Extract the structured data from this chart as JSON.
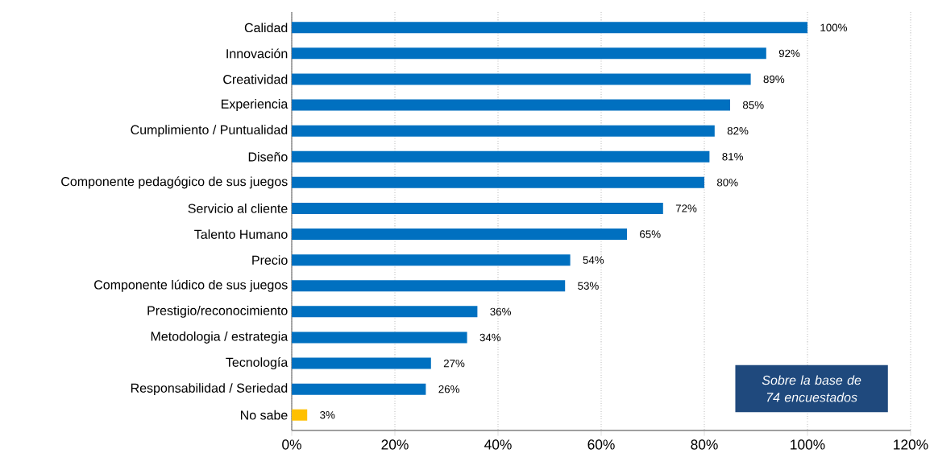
{
  "chart_data": {
    "type": "bar",
    "orientation": "horizontal",
    "categories": [
      "Calidad",
      "Innovación",
      "Creatividad",
      "Experiencia",
      "Cumplimiento / Puntualidad",
      "Diseño",
      "Componente pedagógico de sus juegos",
      "Servicio al cliente",
      "Talento Humano",
      "Precio",
      "Componente lúdico de sus juegos",
      "Prestigio/reconocimiento",
      "Metodologia / estrategia",
      "Tecnología",
      "Responsabilidad / Seriedad",
      "No sabe"
    ],
    "values": [
      100,
      92,
      89,
      85,
      82,
      81,
      80,
      72,
      65,
      54,
      53,
      36,
      34,
      27,
      26,
      3
    ],
    "value_labels": [
      "100%",
      "92%",
      "89%",
      "85%",
      "82%",
      "81%",
      "80%",
      "72%",
      "65%",
      "54%",
      "53%",
      "36%",
      "34%",
      "27%",
      "26%",
      "3%"
    ],
    "colors": [
      "#0070c0",
      "#0070c0",
      "#0070c0",
      "#0070c0",
      "#0070c0",
      "#0070c0",
      "#0070c0",
      "#0070c0",
      "#0070c0",
      "#0070c0",
      "#0070c0",
      "#0070c0",
      "#0070c0",
      "#0070c0",
      "#0070c0",
      "#ffc000"
    ],
    "xlim": [
      0,
      120
    ],
    "xticks": [
      {
        "value": 0,
        "label": "0%"
      },
      {
        "value": 20,
        "label": "20%"
      },
      {
        "value": 40,
        "label": "40%"
      },
      {
        "value": 60,
        "label": "60%"
      },
      {
        "value": 80,
        "label": "80%"
      },
      {
        "value": 100,
        "label": "100%"
      },
      {
        "value": 120,
        "label": "120%"
      }
    ],
    "grid": "x",
    "annotations": [
      "Sobre la base de 74 encuestados"
    ]
  }
}
